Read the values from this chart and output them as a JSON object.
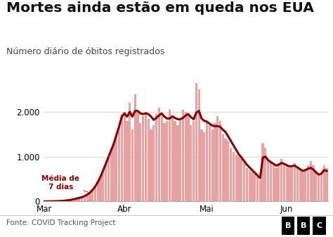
{
  "title": "Mortes ainda estão em queda nos EUA",
  "subtitle": "Número diário de óbitos registrados",
  "footer_left": "Fonte: COVID Tracking Project",
  "footer_right": "BBC",
  "xlabel_ticks": [
    "Mar",
    "Abr",
    "Mai",
    "Jun"
  ],
  "yticks": [
    0,
    1000,
    2000
  ],
  "ylim": [
    0,
    2750
  ],
  "bar_color": "#e8a0a0",
  "line_color": "#8b0000",
  "annotation_text": "Média de\n7 dias",
  "background_color": "#ffffff",
  "title_fontsize": 14.5,
  "subtitle_fontsize": 9,
  "daily_deaths": [
    1,
    2,
    3,
    4,
    6,
    8,
    10,
    14,
    20,
    28,
    38,
    50,
    65,
    80,
    95,
    120,
    155,
    200,
    260,
    340,
    440,
    560,
    700,
    850,
    1000,
    1150,
    1300,
    1500,
    1700,
    1950,
    2000,
    1800,
    2200,
    1600,
    2400,
    2000,
    1750,
    1900,
    2000,
    1850,
    1600,
    1700,
    1950,
    2100,
    1900,
    1750,
    1800,
    2050,
    1900,
    1800,
    1700,
    1850,
    2050,
    2000,
    1950,
    1700,
    1800,
    2650,
    2500,
    1600,
    1550,
    1800,
    1700,
    1600,
    1750,
    1900,
    1800,
    1500,
    1400,
    1350,
    1200,
    1100,
    1050,
    1000,
    950,
    850,
    750,
    700,
    650,
    600,
    550,
    480,
    1300,
    1200,
    900,
    850,
    800,
    750,
    850,
    950,
    850,
    800,
    750,
    800,
    850,
    750,
    700,
    650,
    700,
    800,
    900,
    800,
    700,
    600,
    650,
    800,
    750
  ],
  "moving_avg": [
    1,
    2,
    3,
    4,
    6,
    8,
    10,
    14,
    20,
    28,
    38,
    50,
    65,
    80,
    95,
    118,
    152,
    195,
    256,
    334,
    432,
    554,
    694,
    843,
    993,
    1143,
    1292,
    1488,
    1680,
    1893,
    1964,
    1893,
    2000,
    1893,
    2020,
    2020,
    1964,
    1950,
    1964,
    1950,
    1893,
    1820,
    1864,
    1920,
    1964,
    1893,
    1850,
    1850,
    1900,
    1864,
    1836,
    1836,
    1864,
    1920,
    1950,
    1880,
    1836,
    1980,
    2020,
    1850,
    1800,
    1780,
    1736,
    1693,
    1680,
    1680,
    1664,
    1600,
    1550,
    1450,
    1350,
    1250,
    1150,
    1050,
    980,
    900,
    820,
    760,
    700,
    640,
    580,
    520,
    980,
    1000,
    920,
    880,
    840,
    800,
    820,
    860,
    840,
    810,
    780,
    790,
    800,
    760,
    720,
    680,
    700,
    730,
    750,
    710,
    650,
    600,
    620,
    700,
    680
  ],
  "mar_idx": 0,
  "abr_idx": 30,
  "mai_idx": 61,
  "jun_idx": 91
}
